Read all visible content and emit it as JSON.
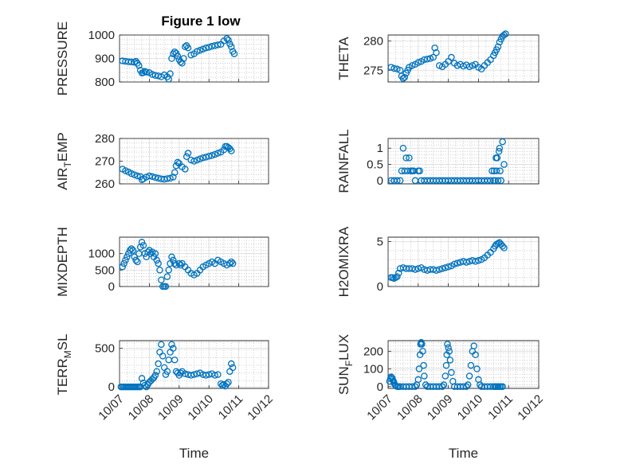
{
  "figure": {
    "title": "Figure 1 low",
    "marker_color": "#0072BD"
  },
  "chart_data": [
    {
      "type": "scatter",
      "title": "Figure 1 low",
      "ylabel": "PRESSURE",
      "xlabel": "",
      "xlim": [
        0,
        5
      ],
      "ylim": [
        800,
        1000
      ],
      "yticks": [
        800,
        900,
        1000
      ],
      "yticklabels": [
        "800",
        "900",
        "1000"
      ],
      "xticklabels": [],
      "grid": true,
      "series": [
        {
          "x": [
            0.1,
            0.2,
            0.3,
            0.4,
            0.5,
            0.55,
            0.6,
            0.65,
            0.7,
            0.75,
            0.8,
            0.85,
            0.9,
            1.0,
            1.1,
            1.2,
            1.3,
            1.4,
            1.5,
            1.6,
            1.65,
            1.7,
            1.75,
            1.8,
            1.85,
            1.9,
            1.95,
            2.0,
            2.05,
            2.1,
            2.15,
            2.2,
            2.25,
            2.3,
            2.4,
            2.5,
            2.6,
            2.7,
            2.8,
            2.9,
            3.0,
            3.1,
            3.2,
            3.3,
            3.4,
            3.5,
            3.6,
            3.65,
            3.7,
            3.75,
            3.8,
            3.85
          ],
          "y": [
            890,
            888,
            886,
            885,
            884,
            888,
            880,
            870,
            850,
            838,
            840,
            845,
            842,
            840,
            832,
            828,
            826,
            822,
            830,
            822,
            812,
            835,
            900,
            920,
            928,
            922,
            910,
            895,
            885,
            880,
            900,
            950,
            955,
            945,
            915,
            920,
            930,
            935,
            940,
            945,
            948,
            952,
            955,
            958,
            960,
            975,
            985,
            978,
            962,
            950,
            930,
            920
          ]
        }
      ]
    },
    {
      "type": "scatter",
      "title": "",
      "ylabel": "THETA",
      "xlabel": "",
      "xlim": [
        0,
        5
      ],
      "ylim": [
        273,
        281
      ],
      "yticks": [
        275,
        280
      ],
      "yticklabels": [
        "275",
        "280"
      ],
      "xticklabels": [],
      "grid": true,
      "series": [
        {
          "x": [
            0.1,
            0.2,
            0.3,
            0.4,
            0.45,
            0.5,
            0.55,
            0.6,
            0.65,
            0.7,
            0.8,
            0.9,
            1.0,
            1.1,
            1.2,
            1.3,
            1.4,
            1.5,
            1.55,
            1.6,
            1.7,
            1.8,
            1.9,
            2.0,
            2.1,
            2.2,
            2.3,
            2.4,
            2.5,
            2.6,
            2.7,
            2.8,
            2.9,
            3.0,
            3.1,
            3.2,
            3.3,
            3.4,
            3.5,
            3.55,
            3.6,
            3.65,
            3.7,
            3.75,
            3.8,
            3.85,
            3.9
          ],
          "y": [
            275.5,
            275.3,
            275.2,
            275.0,
            274.0,
            273.6,
            273.8,
            274.5,
            275.0,
            275.5,
            275.8,
            276.0,
            276.3,
            276.5,
            276.8,
            276.9,
            277.0,
            277.2,
            278.8,
            278.0,
            275.8,
            275.6,
            276.0,
            276.5,
            277.2,
            276.2,
            275.8,
            276.0,
            275.7,
            275.9,
            275.6,
            275.8,
            276.0,
            275.5,
            275.2,
            275.8,
            276.3,
            276.8,
            277.5,
            278.0,
            278.5,
            279.0,
            279.8,
            280.3,
            280.8,
            281.0,
            281.2
          ]
        }
      ]
    },
    {
      "type": "scatter",
      "title": "",
      "ylabel": "AIR_TEMP",
      "xlabel": "",
      "xlim": [
        0,
        5
      ],
      "ylim": [
        260,
        280
      ],
      "yticks": [
        260,
        270,
        280
      ],
      "yticklabels": [
        "260",
        "270",
        "280"
      ],
      "xticklabels": [],
      "grid": true,
      "series": [
        {
          "x": [
            0.1,
            0.2,
            0.3,
            0.4,
            0.5,
            0.6,
            0.7,
            0.75,
            0.8,
            0.9,
            1.0,
            1.1,
            1.2,
            1.3,
            1.4,
            1.5,
            1.6,
            1.7,
            1.8,
            1.85,
            1.9,
            1.95,
            2.0,
            2.1,
            2.2,
            2.25,
            2.3,
            2.4,
            2.5,
            2.6,
            2.7,
            2.8,
            2.9,
            3.0,
            3.1,
            3.2,
            3.3,
            3.4,
            3.5,
            3.55,
            3.6,
            3.65,
            3.7,
            3.75
          ],
          "y": [
            266.5,
            265.8,
            265.2,
            264.5,
            264.0,
            263.5,
            263.2,
            261.8,
            262.2,
            263.0,
            263.5,
            263.2,
            262.8,
            262.5,
            262.2,
            262.0,
            262.3,
            262.5,
            263.0,
            265.0,
            268.0,
            269.5,
            269.0,
            267.5,
            266.5,
            272.0,
            273.5,
            270.5,
            270.0,
            270.5,
            271.0,
            271.5,
            271.8,
            272.2,
            272.5,
            273.0,
            273.5,
            274.0,
            275.0,
            276.5,
            276.5,
            276.0,
            275.5,
            274.5
          ]
        }
      ]
    },
    {
      "type": "scatter",
      "title": "",
      "ylabel": "RAINFALL",
      "xlabel": "",
      "xlim": [
        0,
        5
      ],
      "ylim": [
        -0.1,
        1.3
      ],
      "yticks": [
        0,
        0.5,
        1
      ],
      "yticklabels": [
        "0",
        "0.5",
        "1"
      ],
      "xticklabels": [],
      "grid": true,
      "series": [
        {
          "x": [
            0.1,
            0.2,
            0.3,
            0.4,
            0.45,
            0.5,
            0.55,
            0.6,
            0.65,
            0.7,
            0.75,
            0.8,
            0.85,
            0.9,
            1.0,
            1.05,
            1.1,
            1.2,
            1.3,
            1.4,
            1.5,
            1.6,
            1.7,
            1.8,
            1.9,
            2.0,
            2.1,
            2.2,
            2.3,
            2.4,
            2.5,
            2.6,
            2.7,
            2.8,
            2.9,
            3.0,
            3.1,
            3.2,
            3.3,
            3.4,
            3.45,
            3.5,
            3.52,
            3.55,
            3.58,
            3.6,
            3.62,
            3.65,
            3.68,
            3.7,
            3.72,
            3.75,
            3.8,
            3.85
          ],
          "y": [
            0,
            0,
            0,
            0,
            0.3,
            1.0,
            0.3,
            0.7,
            0.3,
            0.7,
            0.3,
            0.3,
            0.3,
            0,
            0.3,
            0.3,
            0,
            0,
            0,
            0,
            0,
            0,
            0,
            0,
            0,
            0,
            0,
            0,
            0,
            0,
            0,
            0,
            0,
            0,
            0,
            0,
            0,
            0,
            0,
            0,
            0.3,
            0,
            0.3,
            0,
            0.7,
            0.3,
            0.7,
            0,
            0.9,
            1.0,
            0.3,
            0,
            1.2,
            0.5
          ]
        }
      ]
    },
    {
      "type": "scatter",
      "title": "",
      "ylabel": "MIXDEPTH",
      "xlabel": "",
      "xlim": [
        0,
        5
      ],
      "ylim": [
        0,
        1500
      ],
      "yticks": [
        0,
        500,
        1000
      ],
      "yticklabels": [
        "0",
        "500",
        "1000"
      ],
      "xticklabels": [],
      "grid": true,
      "series": [
        {
          "x": [
            0.1,
            0.15,
            0.2,
            0.25,
            0.3,
            0.35,
            0.4,
            0.45,
            0.5,
            0.55,
            0.6,
            0.65,
            0.7,
            0.75,
            0.8,
            0.85,
            0.9,
            0.95,
            1.0,
            1.05,
            1.1,
            1.15,
            1.2,
            1.25,
            1.3,
            1.35,
            1.4,
            1.45,
            1.5,
            1.55,
            1.6,
            1.65,
            1.7,
            1.75,
            1.8,
            1.85,
            1.9,
            2.0,
            2.05,
            2.1,
            2.2,
            2.3,
            2.4,
            2.5,
            2.6,
            2.7,
            2.8,
            2.9,
            3.0,
            3.1,
            3.2,
            3.3,
            3.4,
            3.5,
            3.6,
            3.7,
            3.75,
            3.8
          ],
          "y": [
            600,
            700,
            800,
            900,
            1000,
            1100,
            1150,
            1100,
            900,
            800,
            750,
            1000,
            1200,
            1350,
            1250,
            1000,
            900,
            1050,
            1100,
            1000,
            1050,
            900,
            1000,
            800,
            700,
            500,
            200,
            0,
            0,
            0,
            300,
            500,
            700,
            900,
            800,
            700,
            650,
            700,
            650,
            700,
            600,
            500,
            400,
            350,
            400,
            500,
            600,
            650,
            700,
            750,
            700,
            800,
            750,
            700,
            650,
            700,
            750,
            700
          ]
        }
      ]
    },
    {
      "type": "scatter",
      "title": "",
      "ylabel": "H2OMIXRA",
      "xlabel": "",
      "xlim": [
        0,
        5
      ],
      "ylim": [
        0,
        5.5
      ],
      "yticks": [
        0,
        5
      ],
      "yticklabels": [
        "0",
        "5"
      ],
      "xticklabels": [],
      "grid": true,
      "series": [
        {
          "x": [
            0.1,
            0.15,
            0.2,
            0.25,
            0.3,
            0.35,
            0.4,
            0.5,
            0.6,
            0.7,
            0.8,
            0.9,
            1.0,
            1.1,
            1.2,
            1.3,
            1.4,
            1.5,
            1.6,
            1.7,
            1.8,
            1.9,
            2.0,
            2.1,
            2.2,
            2.3,
            2.4,
            2.5,
            2.6,
            2.7,
            2.8,
            2.9,
            3.0,
            3.1,
            3.2,
            3.3,
            3.4,
            3.5,
            3.55,
            3.6,
            3.65,
            3.7,
            3.75,
            3.8,
            3.85
          ],
          "y": [
            1.0,
            1.0,
            0.9,
            1.0,
            1.1,
            1.5,
            2.0,
            2.1,
            2.0,
            2.0,
            2.0,
            1.9,
            2.0,
            2.1,
            1.9,
            1.8,
            1.9,
            1.9,
            1.8,
            1.9,
            2.0,
            2.1,
            2.2,
            2.3,
            2.5,
            2.6,
            2.7,
            2.8,
            2.7,
            2.8,
            2.9,
            2.8,
            2.9,
            3.0,
            3.2,
            3.5,
            3.8,
            4.2,
            4.5,
            4.7,
            4.8,
            4.9,
            4.7,
            4.5,
            4.3
          ]
        }
      ]
    },
    {
      "type": "scatter",
      "title": "",
      "ylabel": "TERR_MSL",
      "xlabel": "Time",
      "xlim": [
        0,
        5
      ],
      "ylim": [
        -20,
        600
      ],
      "yticks": [
        0,
        500
      ],
      "yticklabels": [
        "0",
        "500"
      ],
      "xticks": [
        0,
        1,
        2,
        3,
        4,
        5
      ],
      "xticklabels": [
        "10/07",
        "10/08",
        "10/09",
        "10/10",
        "10/11",
        "10/12"
      ],
      "grid": true,
      "series": [
        {
          "x": [
            0.05,
            0.1,
            0.15,
            0.2,
            0.25,
            0.3,
            0.35,
            0.4,
            0.45,
            0.5,
            0.55,
            0.6,
            0.65,
            0.7,
            0.75,
            0.8,
            0.85,
            0.9,
            0.95,
            1.0,
            1.05,
            1.1,
            1.15,
            1.2,
            1.25,
            1.3,
            1.35,
            1.4,
            1.45,
            1.5,
            1.55,
            1.6,
            1.65,
            1.7,
            1.75,
            1.8,
            1.85,
            1.9,
            1.95,
            2.0,
            2.05,
            2.1,
            2.2,
            2.3,
            2.4,
            2.5,
            2.6,
            2.7,
            2.8,
            2.9,
            3.0,
            3.1,
            3.2,
            3.3,
            3.4,
            3.45,
            3.5,
            3.55,
            3.6,
            3.65,
            3.7,
            3.75,
            3.8
          ],
          "y": [
            0,
            0,
            0,
            0,
            0,
            0,
            0,
            0,
            0,
            0,
            0,
            0,
            0,
            0,
            110,
            50,
            20,
            0,
            30,
            60,
            80,
            100,
            120,
            150,
            200,
            300,
            450,
            550,
            400,
            250,
            160,
            200,
            350,
            450,
            550,
            500,
            350,
            200,
            180,
            150,
            180,
            200,
            170,
            160,
            150,
            160,
            170,
            180,
            160,
            150,
            160,
            170,
            150,
            160,
            40,
            20,
            30,
            10,
            40,
            60,
            200,
            300,
            250
          ]
        }
      ]
    },
    {
      "type": "scatter",
      "title": "",
      "ylabel": "SUN_FLUX",
      "xlabel": "Time",
      "xlim": [
        0,
        5
      ],
      "ylim": [
        -10,
        260
      ],
      "yticks": [
        0,
        100,
        200
      ],
      "yticklabels": [
        "0",
        "100",
        "200"
      ],
      "xticks": [
        0,
        1,
        2,
        3,
        4,
        5
      ],
      "xticklabels": [
        "10/07",
        "10/08",
        "10/09",
        "10/10",
        "10/11",
        "10/12"
      ],
      "grid": true,
      "series": [
        {
          "x": [
            0.05,
            0.08,
            0.1,
            0.13,
            0.15,
            0.18,
            0.2,
            0.23,
            0.25,
            0.3,
            0.35,
            0.4,
            0.5,
            0.6,
            0.7,
            0.8,
            0.9,
            0.95,
            1.0,
            1.03,
            1.06,
            1.08,
            1.1,
            1.12,
            1.15,
            1.18,
            1.2,
            1.25,
            1.3,
            1.4,
            1.5,
            1.6,
            1.7,
            1.8,
            1.85,
            1.9,
            1.93,
            1.95,
            1.97,
            2.0,
            2.03,
            2.06,
            2.1,
            2.15,
            2.2,
            2.3,
            2.4,
            2.5,
            2.6,
            2.65,
            2.7,
            2.75,
            2.8,
            2.85,
            2.9,
            2.95,
            3.0,
            3.05,
            3.1,
            3.2,
            3.3,
            3.4,
            3.5,
            3.55,
            3.6,
            3.65,
            3.7,
            3.75,
            3.8
          ],
          "y": [
            30,
            45,
            55,
            50,
            40,
            30,
            20,
            10,
            5,
            0,
            0,
            0,
            0,
            0,
            0,
            0,
            0,
            10,
            40,
            100,
            180,
            240,
            250,
            240,
            200,
            120,
            60,
            10,
            0,
            0,
            0,
            0,
            0,
            0,
            10,
            60,
            120,
            180,
            240,
            220,
            200,
            150,
            80,
            30,
            0,
            0,
            0,
            0,
            0,
            10,
            60,
            120,
            200,
            230,
            180,
            100,
            40,
            10,
            0,
            0,
            0,
            0,
            0,
            0,
            0,
            0,
            0,
            0,
            0
          ]
        }
      ]
    }
  ]
}
